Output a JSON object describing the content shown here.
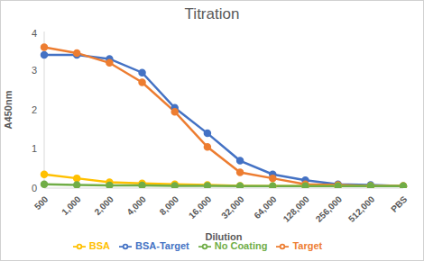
{
  "chart_data": {
    "type": "line",
    "title": "Titration",
    "x_label": "Dilution",
    "y_label": "A450nm",
    "categories": [
      "500",
      "1,000",
      "2,000",
      "4,000",
      "8,000",
      "16,000",
      "32,000",
      "64,000",
      "128,000",
      "256,000",
      "512,000",
      "PBS"
    ],
    "series": [
      {
        "name": "BSA-Target",
        "color": "#4472c4",
        "marker": "circle",
        "values": [
          3.4,
          3.4,
          3.3,
          2.95,
          2.05,
          1.4,
          0.7,
          0.35,
          0.2,
          0.1,
          0.08,
          0.05
        ]
      },
      {
        "name": "Target",
        "color": "#ed7d31",
        "marker": "circle",
        "values": [
          3.6,
          3.45,
          3.2,
          2.7,
          1.95,
          1.05,
          0.4,
          0.25,
          0.1,
          0.08,
          0.05,
          0.05
        ]
      },
      {
        "name": "BSA",
        "color": "#ffc000",
        "marker": "circle",
        "values": [
          0.35,
          0.25,
          0.15,
          0.12,
          0.1,
          0.08,
          0.06,
          0.05,
          0.05,
          0.05,
          0.05,
          0.05
        ]
      },
      {
        "name": "No Coating",
        "color": "#70ad47",
        "marker": "circle",
        "values": [
          0.1,
          0.08,
          0.07,
          0.07,
          0.06,
          0.06,
          0.05,
          0.05,
          0.05,
          0.05,
          0.05,
          0.05
        ]
      }
    ],
    "ylim": [
      0,
      4
    ],
    "yticks": [
      0,
      1,
      2,
      3,
      4
    ],
    "grid": false,
    "legend": "bottom"
  }
}
